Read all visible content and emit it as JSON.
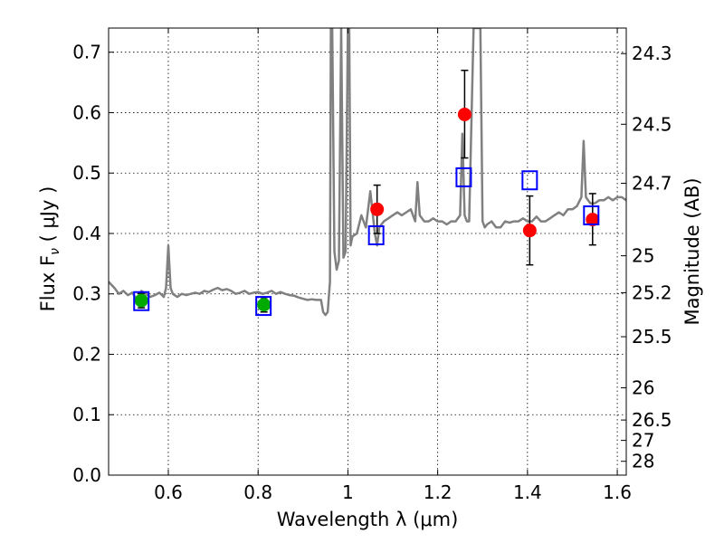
{
  "chart_data": {
    "type": "scatter",
    "xlabel": "Wavelength  λ (μm)",
    "ylabel": "Flux  F",
    "ylabel_subscript": "ν",
    "ylabel_unit": " ( μJy )",
    "ylabel_right": "Magnitude (AB)",
    "xlim": [
      0.467,
      1.62
    ],
    "ylim": [
      0.0,
      0.74
    ],
    "grid": true,
    "x_ticks": [
      {
        "value": 0.6,
        "label": "0.6"
      },
      {
        "value": 0.8,
        "label": "0.8"
      },
      {
        "value": 1.0,
        "label": "1"
      },
      {
        "value": 1.2,
        "label": "1.2"
      },
      {
        "value": 1.4,
        "label": "1.4"
      },
      {
        "value": 1.6,
        "label": "1.6"
      }
    ],
    "y_ticks": [
      {
        "value": 0.0,
        "label": "0.0"
      },
      {
        "value": 0.1,
        "label": "0.1"
      },
      {
        "value": 0.2,
        "label": "0.2"
      },
      {
        "value": 0.3,
        "label": "0.3"
      },
      {
        "value": 0.4,
        "label": "0.4"
      },
      {
        "value": 0.5,
        "label": "0.5"
      },
      {
        "value": 0.6,
        "label": "0.6"
      },
      {
        "value": 0.7,
        "label": "0.7"
      }
    ],
    "magnitude_ticks": [
      {
        "label": "24.3",
        "flux": 0.6977
      },
      {
        "label": "24.5",
        "flux": 0.5808
      },
      {
        "label": "24.7",
        "flux": 0.4831
      },
      {
        "label": "25",
        "flux": 0.3631
      },
      {
        "label": "25.2",
        "flux": 0.302
      },
      {
        "label": "25.5",
        "flux": 0.2291
      },
      {
        "label": "26",
        "flux": 0.1445
      },
      {
        "label": "26.5",
        "flux": 0.0912
      },
      {
        "label": "27",
        "flux": 0.0575
      },
      {
        "label": "28",
        "flux": 0.0229
      }
    ],
    "series": [
      {
        "name": "model spectrum",
        "kind": "line",
        "color": "#808080",
        "x": [
          0.467,
          0.48,
          0.49,
          0.5,
          0.51,
          0.52,
          0.53,
          0.54,
          0.55,
          0.56,
          0.57,
          0.58,
          0.59,
          0.595,
          0.6,
          0.605,
          0.61,
          0.62,
          0.63,
          0.64,
          0.65,
          0.66,
          0.67,
          0.68,
          0.69,
          0.7,
          0.71,
          0.72,
          0.73,
          0.74,
          0.75,
          0.76,
          0.77,
          0.78,
          0.79,
          0.8,
          0.81,
          0.82,
          0.83,
          0.84,
          0.85,
          0.86,
          0.87,
          0.88,
          0.89,
          0.9,
          0.91,
          0.92,
          0.93,
          0.94,
          0.945,
          0.95,
          0.955,
          0.96,
          0.962,
          0.965,
          0.97,
          0.975,
          0.98,
          0.985,
          0.99,
          0.995,
          1.0,
          1.003,
          1.006,
          1.01,
          1.02,
          1.03,
          1.04,
          1.05,
          1.06,
          1.065,
          1.07,
          1.08,
          1.09,
          1.1,
          1.11,
          1.12,
          1.13,
          1.14,
          1.15,
          1.155,
          1.16,
          1.17,
          1.18,
          1.19,
          1.2,
          1.21,
          1.22,
          1.23,
          1.24,
          1.25,
          1.255,
          1.26,
          1.265,
          1.27,
          1.28,
          1.29,
          1.295,
          1.3,
          1.305,
          1.31,
          1.32,
          1.33,
          1.34,
          1.35,
          1.36,
          1.37,
          1.38,
          1.39,
          1.4,
          1.41,
          1.42,
          1.43,
          1.44,
          1.45,
          1.46,
          1.47,
          1.48,
          1.49,
          1.5,
          1.51,
          1.52,
          1.525,
          1.53,
          1.54,
          1.55,
          1.56,
          1.57,
          1.58,
          1.59,
          1.6,
          1.61,
          1.62
        ],
        "y": [
          0.32,
          0.31,
          0.3,
          0.305,
          0.298,
          0.302,
          0.29,
          0.305,
          0.3,
          0.295,
          0.298,
          0.302,
          0.295,
          0.31,
          0.38,
          0.31,
          0.3,
          0.295,
          0.3,
          0.298,
          0.3,
          0.302,
          0.3,
          0.305,
          0.303,
          0.307,
          0.31,
          0.306,
          0.308,
          0.305,
          0.3,
          0.302,
          0.305,
          0.3,
          0.302,
          0.303,
          0.3,
          0.302,
          0.305,
          0.3,
          0.303,
          0.3,
          0.298,
          0.297,
          0.294,
          0.292,
          0.29,
          0.291,
          0.29,
          0.29,
          0.27,
          0.265,
          0.27,
          0.32,
          0.74,
          0.74,
          0.37,
          0.34,
          0.355,
          0.74,
          0.36,
          0.37,
          0.74,
          0.74,
          0.38,
          0.395,
          0.4,
          0.43,
          0.41,
          0.47,
          0.4,
          0.38,
          0.41,
          0.42,
          0.425,
          0.43,
          0.435,
          0.43,
          0.435,
          0.44,
          0.42,
          0.485,
          0.43,
          0.42,
          0.42,
          0.425,
          0.42,
          0.42,
          0.415,
          0.42,
          0.42,
          0.43,
          0.565,
          0.43,
          0.42,
          0.42,
          0.74,
          0.74,
          0.74,
          0.42,
          0.41,
          0.415,
          0.42,
          0.41,
          0.41,
          0.42,
          0.418,
          0.42,
          0.42,
          0.425,
          0.42,
          0.42,
          0.428,
          0.42,
          0.42,
          0.425,
          0.43,
          0.435,
          0.43,
          0.44,
          0.44,
          0.445,
          0.46,
          0.553,
          0.46,
          0.45,
          0.45,
          0.455,
          0.455,
          0.46,
          0.455,
          0.46,
          0.46,
          0.455
        ]
      },
      {
        "name": "observed photometry (red)",
        "kind": "points-errorbars",
        "color": "#ff0000",
        "x": [
          1.065,
          1.26,
          1.405,
          1.545
        ],
        "values": [
          0.44,
          0.597,
          0.405,
          0.423
        ],
        "err_low": [
          0.04,
          0.072,
          0.057,
          0.042
        ],
        "err_high": [
          0.04,
          0.073,
          0.057,
          0.043
        ]
      },
      {
        "name": "observed photometry (green)",
        "kind": "points-errorbars",
        "color": "#00aa00",
        "x": [
          0.54,
          0.813
        ],
        "values": [
          0.289,
          0.282
        ],
        "err_low": [
          0.012,
          0.012
        ],
        "err_high": [
          0.012,
          0.012
        ]
      },
      {
        "name": "model photometry",
        "kind": "open-squares",
        "color": "#0000ff",
        "x": [
          0.54,
          0.812,
          1.063,
          1.258,
          1.405,
          1.542
        ],
        "values": [
          0.288,
          0.28,
          0.397,
          0.493,
          0.488,
          0.43
        ]
      }
    ]
  }
}
